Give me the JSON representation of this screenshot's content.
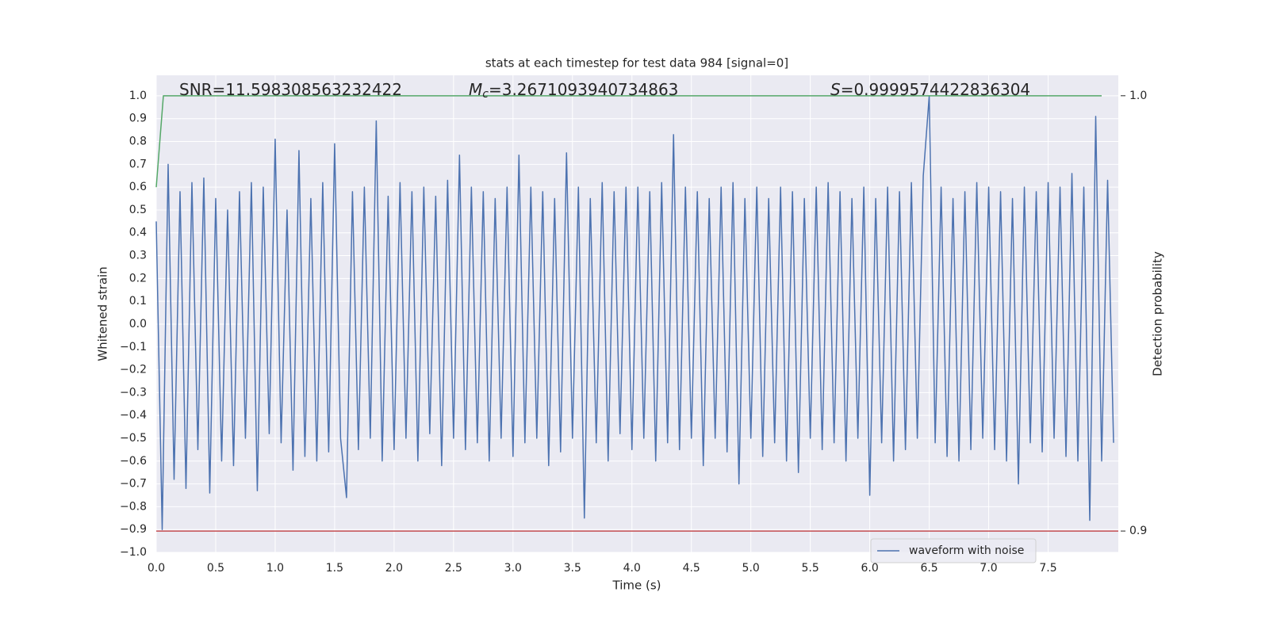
{
  "chart_data": {
    "type": "line",
    "title": "stats at each timestep for test data 984 [signal=0]",
    "xlabel": "Time (s)",
    "ylabel": "Whitened strain",
    "y2label": "Detection probability",
    "annotations": [
      {
        "text": "SNR=11.598308563232422"
      },
      {
        "symbol": "M",
        "sub": "c",
        "text": "=3.2671093940734863"
      },
      {
        "symbol": "S",
        "text": "=0.9999574422836304"
      }
    ],
    "xlim": [
      0,
      8.09
    ],
    "ylim": [
      -1.0,
      1.09
    ],
    "y2lim": [
      0.8951,
      1.0047
    ],
    "grid": true,
    "legend": "lower right",
    "xticks": [
      {
        "value": 0,
        "label": "0.0"
      },
      0.5,
      {
        "value": 1,
        "label": "1.0"
      },
      1.5,
      {
        "value": 2,
        "label": "2.0"
      },
      2.5,
      {
        "value": 3,
        "label": "3.0"
      },
      3.5,
      {
        "value": 4,
        "label": "4.0"
      },
      4.5,
      {
        "value": 5,
        "label": "5.0"
      },
      5.5,
      {
        "value": 6,
        "label": "6.0"
      },
      6.5,
      {
        "value": 7,
        "label": "7.0"
      },
      7.5
    ],
    "yticks": [
      {
        "value": 1,
        "label": "1.0"
      },
      0.9,
      0.8,
      0.7,
      0.6,
      0.5,
      0.4,
      0.3,
      0.2,
      0.1,
      {
        "value": 0,
        "label": "0.0"
      },
      {
        "value": -0.1,
        "label": "−0.1"
      },
      {
        "value": -0.2,
        "label": "−0.2"
      },
      {
        "value": -0.3,
        "label": "−0.3"
      },
      {
        "value": -0.4,
        "label": "−0.4"
      },
      {
        "value": -0.5,
        "label": "−0.5"
      },
      {
        "value": -0.6,
        "label": "−0.6"
      },
      {
        "value": -0.7,
        "label": "−0.7"
      },
      {
        "value": -0.8,
        "label": "−0.8"
      },
      {
        "value": -0.9,
        "label": "−0.9"
      },
      {
        "value": -1,
        "label": "−1.0"
      }
    ],
    "y2ticks": [
      {
        "value": 1,
        "label": "1.0"
      },
      0.9
    ],
    "series": [
      {
        "name": "waveform with noise",
        "color": "#4c72b0",
        "x": [
          0,
          0.05,
          0.1,
          0.15,
          0.2,
          0.25,
          0.3,
          0.35,
          0.4,
          0.45,
          0.5,
          0.55,
          0.6,
          0.65,
          0.7,
          0.75,
          0.8,
          0.85,
          0.9,
          0.95,
          1,
          1.05,
          1.1,
          1.15,
          1.2,
          1.25,
          1.3,
          1.35,
          1.4,
          1.45,
          1.5,
          1.55,
          1.6,
          1.65,
          1.7,
          1.75,
          1.8,
          1.85,
          1.9,
          1.95,
          2,
          2.05,
          2.1,
          2.15,
          2.2,
          2.25,
          2.3,
          2.35,
          2.4,
          2.45,
          2.5,
          2.55,
          2.6,
          2.65,
          2.7,
          2.75,
          2.8,
          2.85,
          2.9,
          2.95,
          3,
          3.05,
          3.1,
          3.15,
          3.2,
          3.25,
          3.3,
          3.35,
          3.4,
          3.45,
          3.5,
          3.55,
          3.6,
          3.65,
          3.7,
          3.75,
          3.8,
          3.85,
          3.9,
          3.95,
          4,
          4.05,
          4.1,
          4.15,
          4.2,
          4.25,
          4.3,
          4.35,
          4.4,
          4.45,
          4.5,
          4.55,
          4.6,
          4.65,
          4.7,
          4.75,
          4.8,
          4.85,
          4.9,
          4.95,
          5,
          5.05,
          5.1,
          5.15,
          5.2,
          5.25,
          5.3,
          5.35,
          5.4,
          5.45,
          5.5,
          5.55,
          5.6,
          5.65,
          5.7,
          5.75,
          5.8,
          5.85,
          5.9,
          5.95,
          6,
          6.05,
          6.1,
          6.15,
          6.2,
          6.25,
          6.3,
          6.35,
          6.4,
          6.45,
          6.5,
          6.55,
          6.6,
          6.65,
          6.7,
          6.75,
          6.8,
          6.85,
          6.9,
          6.95,
          7,
          7.05,
          7.1,
          7.15,
          7.2,
          7.25,
          7.3,
          7.35,
          7.4,
          7.45,
          7.5,
          7.55,
          7.6,
          7.65,
          7.7,
          7.75,
          7.8,
          7.85,
          7.9,
          7.95,
          8,
          8.05
        ],
        "values": [
          0.45,
          -0.9,
          0.7,
          -0.68,
          0.58,
          -0.72,
          0.62,
          -0.55,
          0.64,
          -0.74,
          0.55,
          -0.6,
          0.5,
          -0.62,
          0.58,
          -0.5,
          0.62,
          -0.73,
          0.6,
          -0.48,
          0.81,
          -0.52,
          0.5,
          -0.64,
          0.76,
          -0.58,
          0.55,
          -0.6,
          0.62,
          -0.56,
          0.79,
          -0.5,
          -0.76,
          0.58,
          -0.55,
          0.6,
          -0.5,
          0.89,
          -0.6,
          0.56,
          -0.55,
          0.62,
          -0.5,
          0.58,
          -0.6,
          0.6,
          -0.48,
          0.56,
          -0.62,
          0.63,
          -0.5,
          0.74,
          -0.55,
          0.6,
          -0.52,
          0.58,
          -0.6,
          0.55,
          -0.5,
          0.6,
          -0.58,
          0.74,
          -0.52,
          0.6,
          -0.5,
          0.58,
          -0.62,
          0.55,
          -0.56,
          0.75,
          -0.5,
          0.6,
          -0.85,
          0.55,
          -0.52,
          0.62,
          -0.6,
          0.58,
          -0.48,
          0.6,
          -0.55,
          0.6,
          -0.5,
          0.58,
          -0.6,
          0.62,
          -0.52,
          0.83,
          -0.55,
          0.6,
          -0.5,
          0.58,
          -0.62,
          0.55,
          -0.5,
          0.6,
          -0.56,
          0.62,
          -0.7,
          0.55,
          -0.5,
          0.6,
          -0.58,
          0.55,
          -0.52,
          0.6,
          -0.6,
          0.58,
          -0.65,
          0.55,
          -0.5,
          0.6,
          -0.55,
          0.62,
          -0.52,
          0.58,
          -0.6,
          0.55,
          -0.5,
          0.6,
          -0.75,
          0.55,
          -0.52,
          0.6,
          -0.6,
          0.58,
          -0.55,
          0.62,
          -0.5,
          0.65,
          1.0,
          -0.52,
          0.6,
          -0.58,
          0.55,
          -0.6,
          0.58,
          -0.55,
          0.62,
          -0.5,
          0.6,
          -0.55,
          0.58,
          -0.6,
          0.55,
          -0.7,
          0.6,
          -0.52,
          0.58,
          -0.56,
          0.62,
          -0.5,
          0.6,
          -0.58,
          0.66,
          -0.6,
          0.6,
          -0.86,
          0.91,
          -0.6,
          0.63,
          -0.52
        ]
      },
      {
        "color": "#55a868",
        "axis": "y2",
        "x": [
          0,
          0.06,
          7.95
        ],
        "values": [
          0.979,
          1.0,
          1.0
        ]
      },
      {
        "color": "#c44e52",
        "axis": "y2",
        "x": [
          0,
          8.09
        ],
        "values": [
          0.9,
          0.9
        ]
      }
    ]
  }
}
